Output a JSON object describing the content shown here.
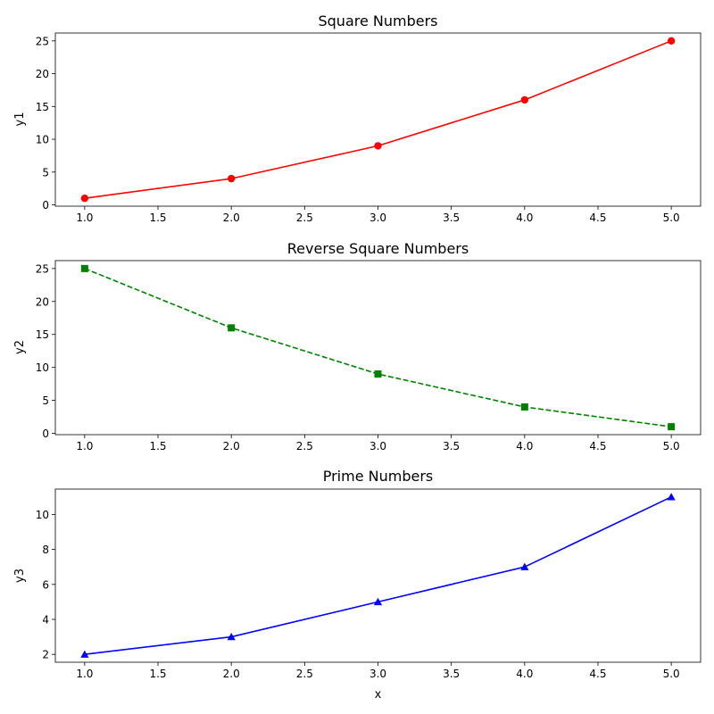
{
  "chart_data": [
    {
      "type": "line",
      "title": "Square Numbers",
      "xlabel": "",
      "ylabel": "y1",
      "x": [
        1,
        2,
        3,
        4,
        5
      ],
      "series": [
        {
          "values": [
            1,
            4,
            9,
            16,
            25
          ],
          "color": "#ff0000",
          "line_style": "solid",
          "marker": "circle"
        }
      ],
      "xlim": [
        0.8,
        5.2
      ],
      "ylim": [
        -0.2,
        26.2
      ],
      "xticks": [
        1.0,
        1.5,
        2.0,
        2.5,
        3.0,
        3.5,
        4.0,
        4.5,
        5.0
      ],
      "xtick_labels": [
        "1.0",
        "1.5",
        "2.0",
        "2.5",
        "3.0",
        "3.5",
        "4.0",
        "4.5",
        "5.0"
      ],
      "yticks": [
        0,
        5,
        10,
        15,
        20,
        25
      ],
      "ytick_labels": [
        "0",
        "5",
        "10",
        "15",
        "20",
        "25"
      ],
      "grid": false,
      "legend": "none"
    },
    {
      "type": "line",
      "title": "Reverse Square Numbers",
      "xlabel": "",
      "ylabel": "y2",
      "x": [
        1,
        2,
        3,
        4,
        5
      ],
      "series": [
        {
          "values": [
            25,
            16,
            9,
            4,
            1
          ],
          "color": "#008000",
          "line_style": "dashed",
          "marker": "square"
        }
      ],
      "xlim": [
        0.8,
        5.2
      ],
      "ylim": [
        -0.2,
        26.2
      ],
      "xticks": [
        1.0,
        1.5,
        2.0,
        2.5,
        3.0,
        3.5,
        4.0,
        4.5,
        5.0
      ],
      "xtick_labels": [
        "1.0",
        "1.5",
        "2.0",
        "2.5",
        "3.0",
        "3.5",
        "4.0",
        "4.5",
        "5.0"
      ],
      "yticks": [
        0,
        5,
        10,
        15,
        20,
        25
      ],
      "ytick_labels": [
        "0",
        "5",
        "10",
        "15",
        "20",
        "25"
      ],
      "grid": false,
      "legend": "none"
    },
    {
      "type": "line",
      "title": "Prime Numbers",
      "xlabel": "x",
      "ylabel": "y3",
      "x": [
        1,
        2,
        3,
        4,
        5
      ],
      "series": [
        {
          "values": [
            2,
            3,
            5,
            7,
            11
          ],
          "color": "#0000ff",
          "line_style": "solid",
          "marker": "triangle-up"
        }
      ],
      "xlim": [
        0.8,
        5.2
      ],
      "ylim": [
        1.55,
        11.45
      ],
      "xticks": [
        1.0,
        1.5,
        2.0,
        2.5,
        3.0,
        3.5,
        4.0,
        4.5,
        5.0
      ],
      "xtick_labels": [
        "1.0",
        "1.5",
        "2.0",
        "2.5",
        "3.0",
        "3.5",
        "4.0",
        "4.5",
        "5.0"
      ],
      "yticks": [
        2,
        4,
        6,
        8,
        10
      ],
      "ytick_labels": [
        "2",
        "4",
        "6",
        "8",
        "10"
      ],
      "grid": false,
      "legend": "none"
    }
  ]
}
